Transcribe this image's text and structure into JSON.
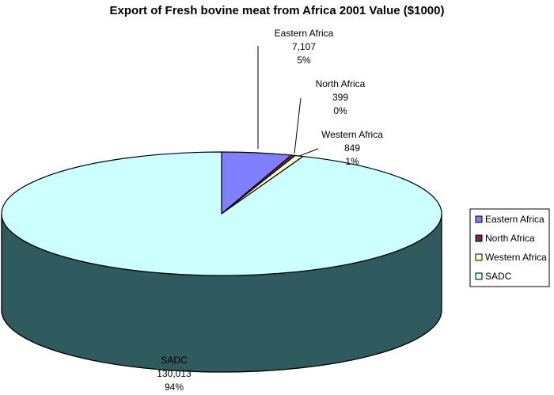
{
  "chart_data": {
    "type": "pie",
    "title": "Export of Fresh bovine meat from Africa 2001 Value ($1000)",
    "slices": [
      {
        "name": "Eastern Africa",
        "value": 7107,
        "value_label": "7,107",
        "percent_label": "5%",
        "color": "#8080ff"
      },
      {
        "name": "North Africa",
        "value": 399,
        "value_label": "399",
        "percent_label": "0%",
        "color": "#802060"
      },
      {
        "name": "Western Africa",
        "value": 849,
        "value_label": "849",
        "percent_label": "1%",
        "color": "#ffffc0"
      },
      {
        "name": "SADC",
        "value": 130013,
        "value_label": "130,013",
        "percent_label": "94%",
        "color": "#ccffff"
      }
    ],
    "side_color": "#2f5a5e",
    "legend_placement": "right"
  }
}
